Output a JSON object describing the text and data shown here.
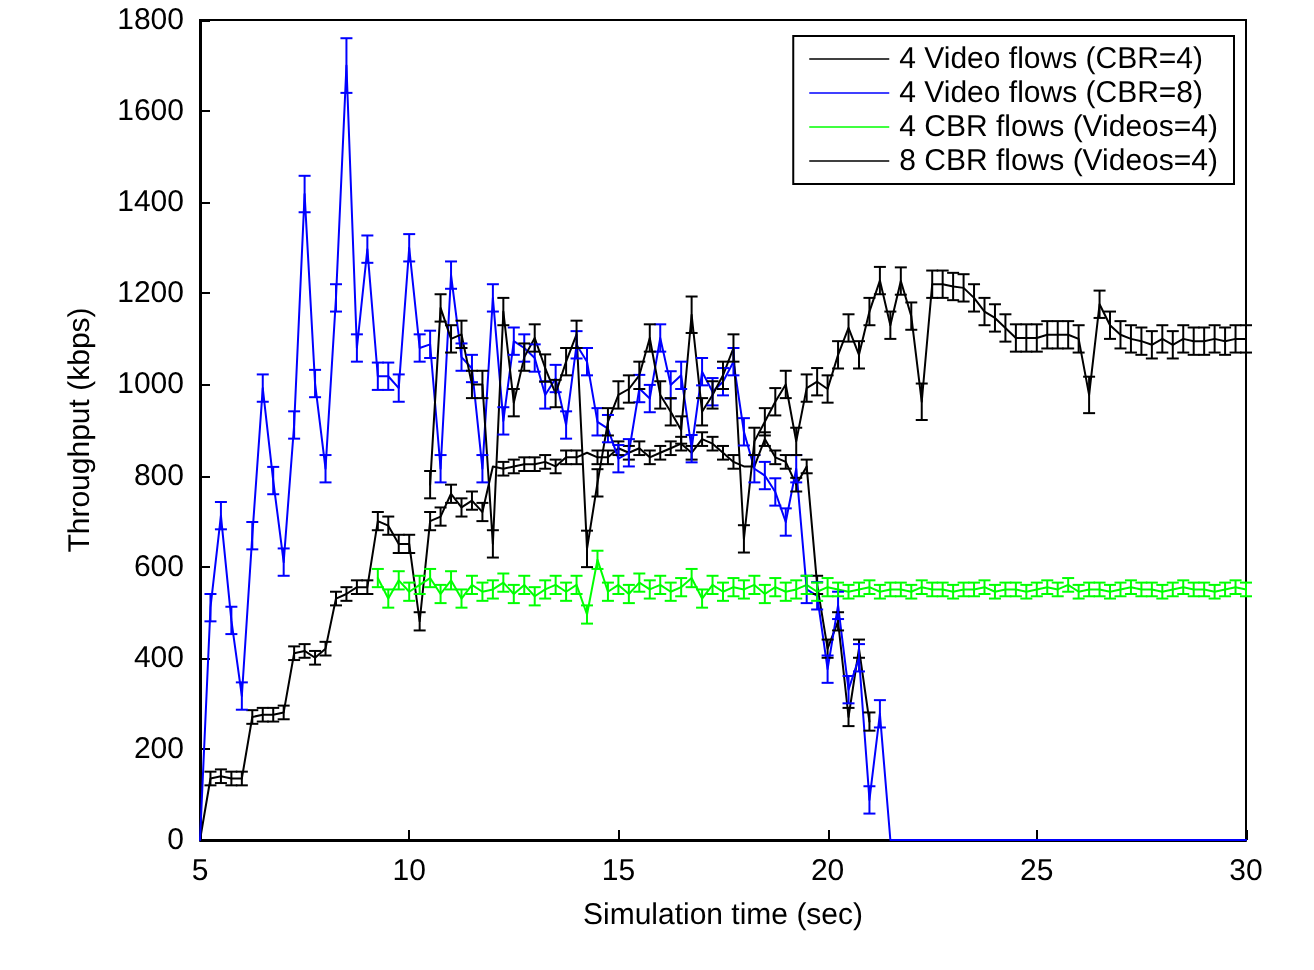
{
  "chart_data": {
    "type": "line",
    "xlabel": "Simulation time (sec)",
    "ylabel": "Throughput (kbps)",
    "xlim": [
      5,
      30
    ],
    "xticks": [
      5,
      10,
      15,
      20,
      25,
      30
    ],
    "ylim": [
      0,
      1800
    ],
    "yticks": [
      0,
      200,
      400,
      600,
      800,
      1000,
      1200,
      1400,
      1600,
      1800
    ],
    "grid": false,
    "legend": "top right",
    "series": [
      {
        "name": "4 Video flows (CBR=4)",
        "color": "#000000",
        "x": [
          5,
          5.25,
          5.5,
          5.75,
          6,
          6.25,
          6.5,
          6.75,
          7,
          7.25,
          7.5,
          7.75,
          8,
          8.25,
          8.5,
          8.75,
          9,
          9.25,
          9.5,
          9.75,
          10,
          10.25,
          10.5,
          10.75,
          11,
          11.25,
          11.5,
          11.75,
          12,
          12.25,
          12.5,
          12.75,
          13,
          13.25,
          13.5,
          13.75,
          14,
          14.25,
          14.5,
          14.75,
          15,
          15.25,
          15.5,
          15.75,
          16,
          16.25,
          16.5,
          16.75,
          17,
          17.25,
          17.5,
          17.75,
          18,
          18.25,
          18.5,
          18.75,
          19,
          19.25,
          19.5,
          19.75,
          20,
          20.25,
          20.5,
          20.75,
          21
        ],
        "values": [
          0,
          135,
          140,
          135,
          135,
          270,
          275,
          275,
          280,
          410,
          415,
          400,
          420,
          530,
          540,
          555,
          555,
          700,
          690,
          650,
          650,
          480,
          700,
          710,
          760,
          730,
          745,
          720,
          820,
          815,
          820,
          825,
          825,
          830,
          820,
          840,
          840,
          850,
          840,
          840,
          860,
          850,
          860,
          840,
          850,
          860,
          870,
          850,
          880,
          870,
          850,
          830,
          820,
          820,
          880,
          840,
          830,
          780,
          820,
          560,
          420,
          480,
          270,
          420,
          260
        ],
        "errors": [
          null,
          15,
          15,
          15,
          15,
          15,
          15,
          15,
          15,
          15,
          15,
          15,
          15,
          15,
          15,
          15,
          15,
          20,
          20,
          20,
          20,
          20,
          20,
          20,
          20,
          20,
          20,
          20,
          null,
          15,
          15,
          15,
          15,
          15,
          15,
          15,
          15,
          null,
          15,
          15,
          15,
          15,
          15,
          15,
          15,
          15,
          15,
          15,
          15,
          15,
          15,
          15,
          null,
          null,
          15,
          15,
          15,
          15,
          15,
          20,
          20,
          20,
          20,
          20,
          20
        ]
      },
      {
        "name": "4 Video flows (CBR=8)",
        "color": "#0000ff",
        "x": [
          5,
          5.25,
          5.5,
          5.75,
          6,
          6.25,
          6.5,
          6.75,
          7,
          7.25,
          7.5,
          7.75,
          8,
          8.25,
          8.5,
          8.75,
          9,
          9.25,
          9.5,
          9.75,
          10,
          10.25,
          10.5,
          10.75,
          11,
          11.25,
          11.5,
          11.75,
          12,
          12.25,
          12.5,
          12.75,
          13,
          13.25,
          13.5,
          13.75,
          14,
          14.25,
          14.5,
          14.75,
          15,
          15.25,
          15.5,
          15.75,
          16,
          16.25,
          16.5,
          16.75,
          17,
          17.25,
          17.5,
          17.75,
          18,
          18.25,
          18.5,
          18.75,
          19,
          19.25,
          19.5,
          19.75,
          20,
          20.25,
          20.5,
          20.75,
          21,
          21.25,
          21.5,
          30
        ],
        "values": [
          0,
          510,
          712,
          482,
          316,
          668,
          992,
          789,
          610,
          911,
          1418,
          1002,
          815,
          1190,
          1700,
          1080,
          1297,
          1018,
          1018,
          992,
          1300,
          1080,
          1088,
          815,
          1240,
          1060,
          1035,
          815,
          1190,
          920,
          1095,
          1080,
          1058,
          977,
          1013,
          911,
          1087,
          1050,
          918,
          903,
          837,
          850,
          991,
          969,
          1102,
          999,
          1020,
          859,
          1028,
          984,
          1006,
          1050,
          896,
          815,
          800,
          764,
          698,
          815,
          550,
          536,
          375,
          515,
          330,
          400,
          88,
          277,
          0,
          0
        ],
        "errors": [
          null,
          30,
          30,
          30,
          30,
          30,
          30,
          30,
          30,
          30,
          40,
          30,
          30,
          30,
          60,
          30,
          30,
          30,
          30,
          30,
          30,
          30,
          30,
          30,
          30,
          30,
          30,
          30,
          30,
          30,
          30,
          30,
          30,
          30,
          30,
          30,
          30,
          30,
          30,
          30,
          30,
          30,
          30,
          30,
          30,
          30,
          30,
          30,
          30,
          30,
          30,
          30,
          30,
          30,
          30,
          30,
          30,
          30,
          30,
          30,
          30,
          30,
          30,
          30,
          30,
          30,
          null,
          null
        ]
      },
      {
        "name": "4 CBR flows (Videos=4)",
        "color": "#00ff00",
        "x": [
          9.25,
          9.5,
          9.75,
          10,
          10.25,
          10.5,
          10.75,
          11,
          11.25,
          11.5,
          11.75,
          12,
          12.25,
          12.5,
          12.75,
          13,
          13.25,
          13.5,
          13.75,
          14,
          14.25,
          14.5,
          14.75,
          15,
          15.25,
          15.5,
          15.75,
          16,
          16.25,
          16.5,
          16.75,
          17,
          17.25,
          17.5,
          17.75,
          18,
          18.25,
          18.5,
          18.75,
          19,
          19.25,
          19.5,
          19.75,
          20,
          20.25,
          20.5,
          20.75,
          21,
          21.25,
          21.5,
          21.75,
          22,
          22.25,
          22.5,
          22.75,
          23,
          23.25,
          23.5,
          23.75,
          24,
          24.25,
          24.5,
          24.75,
          25,
          25.25,
          25.5,
          25.75,
          26,
          26.25,
          26.5,
          26.75,
          27,
          27.25,
          27.5,
          27.75,
          28,
          28.25,
          28.5,
          28.75,
          29,
          29.25,
          29.5,
          29.75,
          30
        ],
        "values": [
          575,
          530,
          570,
          545,
          560,
          575,
          540,
          570,
          530,
          560,
          545,
          550,
          565,
          540,
          560,
          535,
          550,
          560,
          545,
          560,
          495,
          615,
          545,
          560,
          540,
          565,
          550,
          560,
          545,
          555,
          575,
          530,
          560,
          545,
          555,
          550,
          560,
          540,
          555,
          545,
          550,
          560,
          545,
          555,
          550,
          545,
          550,
          555,
          545,
          550,
          550,
          545,
          555,
          550,
          550,
          545,
          550,
          550,
          555,
          545,
          550,
          550,
          545,
          550,
          555,
          550,
          560,
          545,
          550,
          550,
          545,
          550,
          555,
          550,
          550,
          545,
          550,
          555,
          550,
          550,
          545,
          550,
          555,
          550
        ],
        "errors": [
          20,
          20,
          20,
          20,
          20,
          20,
          20,
          20,
          20,
          20,
          20,
          20,
          20,
          20,
          20,
          20,
          20,
          20,
          20,
          20,
          20,
          20,
          20,
          20,
          20,
          20,
          20,
          20,
          20,
          20,
          20,
          20,
          20,
          20,
          20,
          20,
          20,
          20,
          20,
          20,
          20,
          20,
          20,
          20,
          15,
          15,
          15,
          15,
          15,
          15,
          15,
          15,
          15,
          15,
          15,
          15,
          15,
          15,
          15,
          15,
          15,
          15,
          15,
          15,
          15,
          15,
          15,
          15,
          15,
          15,
          15,
          15,
          15,
          15,
          15,
          15,
          15,
          15,
          15,
          15,
          15,
          15,
          15,
          15
        ]
      },
      {
        "name": "8 CBR flows (Videos=4)",
        "color": "#000000",
        "x": [
          10.5,
          10.75,
          11,
          11.25,
          11.5,
          11.75,
          12,
          12.25,
          12.5,
          12.75,
          13,
          13.25,
          13.5,
          13.75,
          14,
          14.25,
          14.5,
          14.75,
          15,
          15.25,
          15.5,
          15.75,
          16,
          16.25,
          16.5,
          16.75,
          17,
          17.25,
          17.5,
          17.75,
          18,
          18.25,
          18.5,
          18.75,
          19,
          19.25,
          19.5,
          19.75,
          20,
          20.25,
          20.5,
          20.75,
          21,
          21.25,
          21.5,
          21.75,
          22,
          22.25,
          22.5,
          22.75,
          23,
          23.25,
          23.5,
          23.75,
          24,
          24.25,
          24.5,
          24.75,
          25,
          25.25,
          25.5,
          25.75,
          26,
          26.25,
          26.5,
          26.75,
          27,
          27.25,
          27.5,
          27.75,
          28,
          28.25,
          28.5,
          28.75,
          29,
          29.25,
          29.5,
          29.75,
          30
        ],
        "values": [
          780,
          1168,
          1100,
          1110,
          1000,
          1000,
          650,
          1160,
          960,
          1060,
          1102,
          1036,
          980,
          1050,
          1110,
          639,
          784,
          918,
          977,
          990,
          1020,
          1102,
          977,
          940,
          900,
          1153,
          940,
          977,
          1020,
          1080,
          661,
          875,
          918,
          962,
          1000,
          875,
          992,
          1006,
          990,
          1065,
          1124,
          1065,
          1160,
          1228,
          1130,
          1227,
          1150,
          962,
          1220,
          1220,
          1215,
          1212,
          1190,
          1160,
          1146,
          1124,
          1102,
          1102,
          1102,
          1109,
          1109,
          1109,
          1100,
          977,
          1176,
          1130,
          1109,
          1100,
          1095,
          1087,
          1100,
          1087,
          1100,
          1095,
          1095,
          1100,
          1095,
          1100,
          1100
        ],
        "errors": [
          30,
          30,
          30,
          30,
          30,
          30,
          30,
          30,
          30,
          30,
          30,
          30,
          30,
          30,
          30,
          40,
          30,
          30,
          30,
          30,
          30,
          30,
          30,
          30,
          30,
          40,
          30,
          30,
          30,
          30,
          30,
          30,
          30,
          30,
          30,
          30,
          30,
          30,
          30,
          30,
          30,
          30,
          30,
          30,
          30,
          30,
          30,
          40,
          30,
          30,
          30,
          30,
          30,
          30,
          30,
          30,
          30,
          30,
          30,
          30,
          30,
          30,
          30,
          40,
          30,
          30,
          30,
          30,
          30,
          30,
          30,
          30,
          30,
          30,
          30,
          30,
          30,
          30,
          30
        ]
      }
    ]
  }
}
